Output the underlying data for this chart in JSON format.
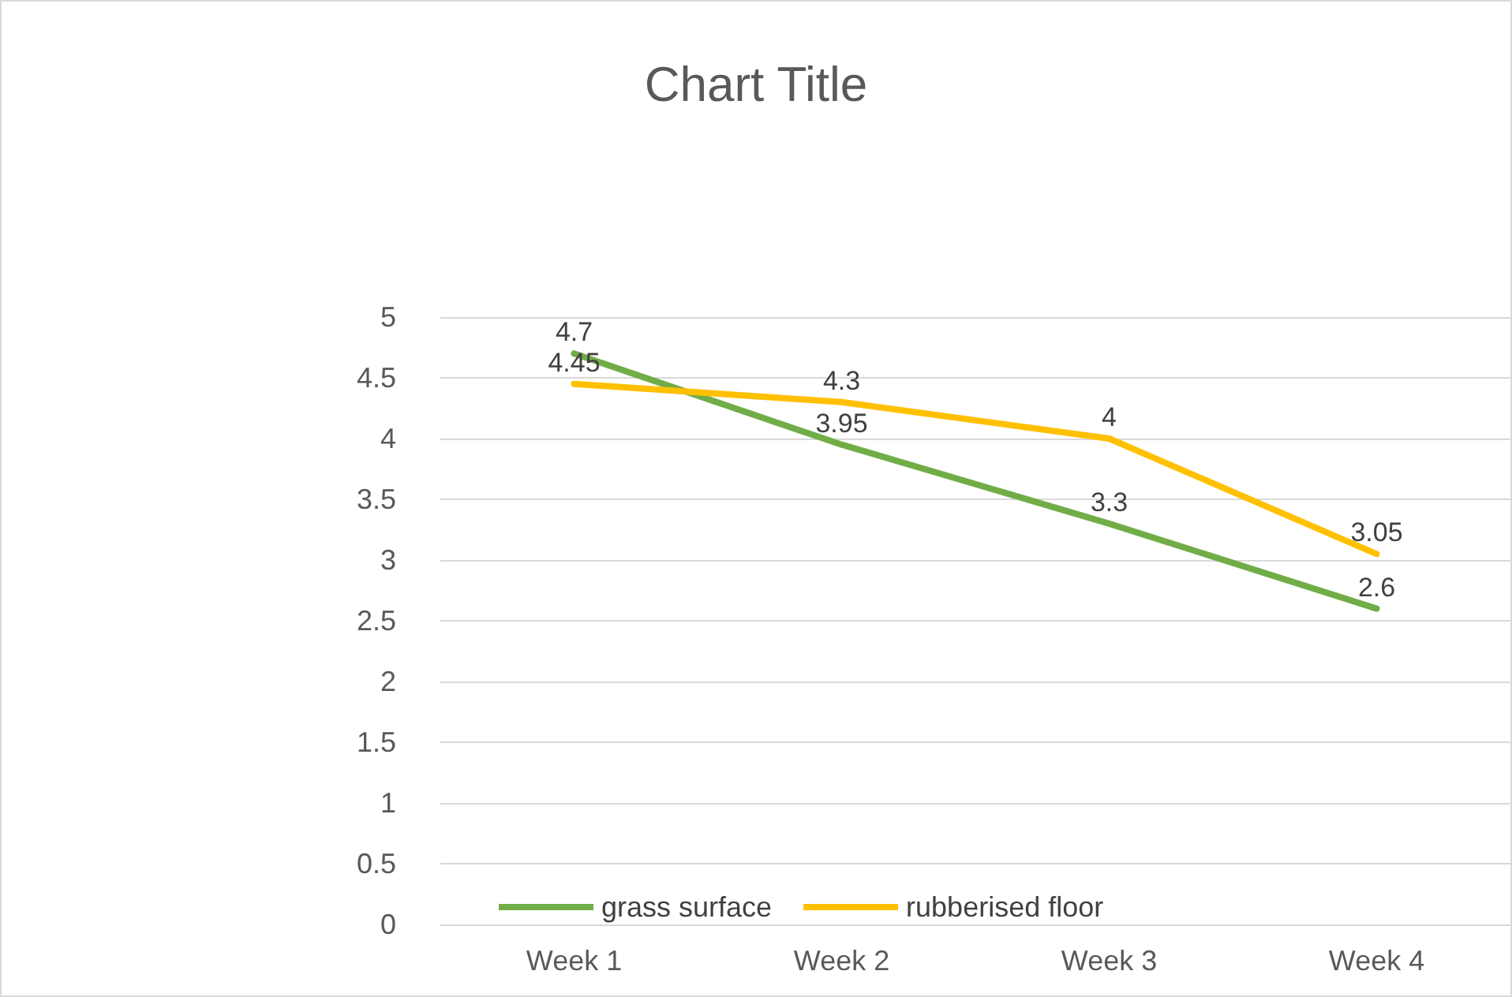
{
  "chart_data": {
    "type": "line",
    "title": "Chart Title",
    "categories": [
      "Week 1",
      "Week 2",
      "Week 3",
      "Week 4"
    ],
    "series": [
      {
        "name": "grass surface",
        "color": "#70ad47",
        "values": [
          4.7,
          3.95,
          3.3,
          2.6
        ]
      },
      {
        "name": "rubberised floor",
        "color": "#ffc000",
        "values": [
          4.45,
          4.3,
          4,
          3.05
        ]
      }
    ],
    "ylim": [
      0,
      5
    ],
    "yticks": [
      0,
      0.5,
      1,
      1.5,
      2,
      2.5,
      3,
      3.5,
      4,
      4.5,
      5
    ],
    "grid": "y",
    "legend": "bottom",
    "data_labels": true,
    "marker": "none",
    "line_style": "solid"
  }
}
